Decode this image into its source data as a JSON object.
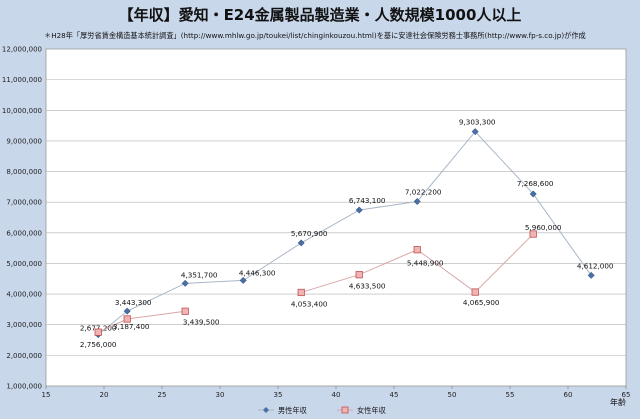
{
  "title": "【年収】愛知・E24金属製品製造業・人数規模1000人以上",
  "subtitle": "＊H28年「厚労省賃金構造基本統計調査」(http://www.mhlw.go.jp/toukei/list/chinginkouzou.html)を基に安達社会保険労務士事務所(http://www.fp-s.co.jp)が作成",
  "chart_data": {
    "type": "scatter",
    "xlabel": "年齢",
    "xlim": [
      15,
      65
    ],
    "ylim": [
      1000000,
      12000000
    ],
    "x_ticks": [
      "15",
      "20",
      "25",
      "30",
      "35",
      "40",
      "45",
      "50",
      "55",
      "60",
      "65"
    ],
    "y_ticks": [
      "1,000,000",
      "2,000,000",
      "3,000,000",
      "4,000,000",
      "5,000,000",
      "6,000,000",
      "7,000,000",
      "8,000,000",
      "9,000,000",
      "10,000,000",
      "11,000,000",
      "12,000,000"
    ],
    "grid": true,
    "legend_position": "bottom",
    "series": [
      {
        "name": "男性年収",
        "color": "#4a6fa5",
        "marker": "diamond",
        "points": [
          {
            "x": 19.5,
            "y": 2677200,
            "label": "2,677,200"
          },
          {
            "x": 22,
            "y": 3443300,
            "label": "3,443,300"
          },
          {
            "x": 27,
            "y": 4351700,
            "label": "4,351,700"
          },
          {
            "x": 32,
            "y": 4446300,
            "label": "4,446,300"
          },
          {
            "x": 37,
            "y": 5670900,
            "label": "5,670,900"
          },
          {
            "x": 42,
            "y": 6743100,
            "label": "6,743,100"
          },
          {
            "x": 47,
            "y": 7022200,
            "label": "7,022,200"
          },
          {
            "x": 52,
            "y": 9303300,
            "label": "9,303,300"
          },
          {
            "x": 57,
            "y": 7268600,
            "label": "7,268,600"
          },
          {
            "x": 62,
            "y": 4612000,
            "label": "4,612,000"
          }
        ]
      },
      {
        "name": "女性年収",
        "color": "#e08080",
        "marker": "square",
        "points": [
          {
            "x": 19.5,
            "y": 2756000,
            "label": "2,756,000"
          },
          {
            "x": 22,
            "y": 3187400,
            "label": "3,187,400"
          },
          {
            "x": 27,
            "y": 3439500,
            "label": "3,439,500"
          },
          {
            "x": 37,
            "y": 4053400,
            "label": "4,053,400"
          },
          {
            "x": 42,
            "y": 4633500,
            "label": "4,633,500"
          },
          {
            "x": 47,
            "y": 5448900,
            "label": "5,448,900"
          },
          {
            "x": 52,
            "y": 4065900,
            "label": "4,065,900"
          },
          {
            "x": 57,
            "y": 5960000,
            "label": "5,960,000"
          }
        ],
        "segments": [
          [
            0,
            1,
            2
          ],
          [
            3,
            4,
            5,
            6,
            7
          ]
        ]
      }
    ]
  }
}
